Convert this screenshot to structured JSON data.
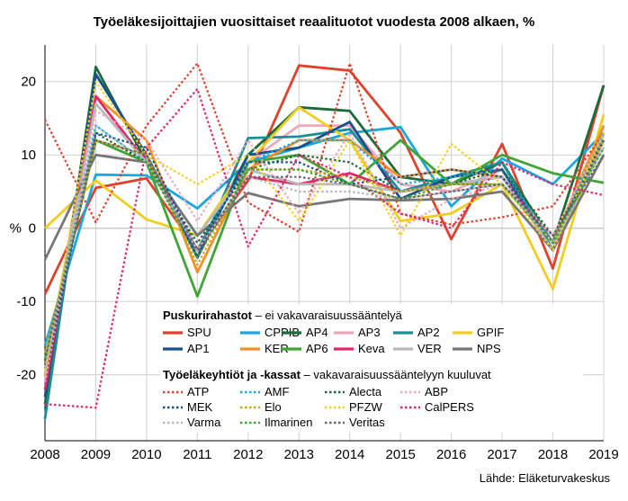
{
  "chart_data": {
    "type": "line",
    "title": "Työeläkesijoittajien vuosittaiset reaalituotot vuodesta 2008 alkaen, %",
    "xlabel": "",
    "ylabel": "%",
    "categories": [
      "2008",
      "2009",
      "2010",
      "2011",
      "2012",
      "2013",
      "2014",
      "2015",
      "2016",
      "2017",
      "2018",
      "2019"
    ],
    "yticks": [
      20,
      10,
      0,
      -10,
      -20
    ],
    "ylim": [
      -29,
      25
    ],
    "grid": true,
    "source": "Lähde: Eläketurvakeskus",
    "legend_groups": [
      {
        "bold": "Puskurirahastot",
        "rest": " – ei vakavaraisuussääntelyä"
      },
      {
        "bold": "Työeläkeyhtiöt ja -kassat",
        "rest": " – vakavaraisuussääntelyyn kuuluvat"
      }
    ],
    "series": [
      {
        "name": "SPU",
        "group": 0,
        "style": "solid",
        "color": "#e0412d",
        "values": [
          -9,
          5.5,
          6.8,
          -3,
          6.5,
          22.2,
          21.5,
          13,
          -1.5,
          11.5,
          -5.5,
          19.5
        ]
      },
      {
        "name": "CPPIB",
        "group": 0,
        "style": "solid",
        "color": "#1aa7e0",
        "values": [
          -16,
          7.3,
          7.2,
          2.7,
          9,
          11,
          13,
          13.8,
          3,
          9.5,
          6,
          13
        ]
      },
      {
        "name": "AP4",
        "group": 0,
        "style": "solid",
        "color": "#1b6b3a",
        "values": [
          -24,
          22,
          9,
          -3,
          10,
          16.5,
          16,
          7,
          6,
          9,
          -2,
          19.5
        ]
      },
      {
        "name": "AP3",
        "group": 0,
        "style": "solid",
        "color": "#f0a8b8",
        "values": [
          -21,
          18,
          9,
          -3,
          9,
          14,
          14,
          6,
          5,
          8,
          -2,
          14
        ]
      },
      {
        "name": "AP2",
        "group": 0,
        "style": "solid",
        "color": "#1a8e96",
        "values": [
          -26,
          21,
          10,
          -4,
          12.3,
          12.5,
          13.5,
          5,
          7,
          9,
          -3,
          13
        ]
      },
      {
        "name": "GPIF",
        "group": 0,
        "style": "solid",
        "color": "#f2cc1e",
        "values": [
          0,
          6.5,
          1.2,
          -1,
          9,
          16.5,
          12,
          1,
          2,
          6,
          -8.3,
          15.5
        ]
      },
      {
        "name": "AP1",
        "group": 0,
        "style": "solid",
        "color": "#1a4f8c",
        "values": [
          -23,
          21,
          10,
          -4,
          10,
          11,
          14.5,
          4,
          7,
          8,
          -3,
          12
        ]
      },
      {
        "name": "KER",
        "group": 0,
        "style": "solid",
        "color": "#f0922a",
        "values": [
          -20,
          18,
          12,
          -6,
          8,
          12,
          12,
          7,
          8,
          7,
          -2,
          14
        ]
      },
      {
        "name": "AP6",
        "group": 0,
        "style": "solid",
        "color": "#3fa535",
        "values": [
          -18,
          12,
          9,
          -9.3,
          9,
          10,
          6,
          12,
          6,
          10,
          7.5,
          6.2
        ]
      },
      {
        "name": "Keva",
        "group": 0,
        "style": "solid",
        "color": "#e0286e",
        "values": [
          -22,
          18,
          9,
          -3,
          7,
          6,
          7.5,
          5,
          6,
          7,
          -2,
          12
        ]
      },
      {
        "name": "VER",
        "group": 0,
        "style": "solid",
        "color": "#b9b9b9",
        "values": [
          -20,
          17,
          9,
          -1,
          8,
          6,
          6,
          5,
          6,
          7,
          -3,
          12
        ]
      },
      {
        "name": "NPS",
        "group": 0,
        "style": "solid",
        "color": "#777777",
        "values": [
          -4.3,
          10,
          9,
          -1,
          4.8,
          3,
          4,
          3.8,
          4,
          5,
          -3,
          10
        ]
      },
      {
        "name": "ATP",
        "group": 1,
        "style": "dotted",
        "color": "#e0412d",
        "values": [
          14.8,
          0.8,
          14,
          22.5,
          3.5,
          -0.5,
          22.5,
          2,
          0.5,
          1.5,
          3,
          13
        ]
      },
      {
        "name": "AMF",
        "group": 1,
        "style": "dotted",
        "color": "#1aa7e0",
        "values": [
          -18,
          14,
          9,
          -3,
          9,
          12,
          12,
          6,
          7,
          8,
          -2,
          13
        ]
      },
      {
        "name": "Alecta",
        "group": 1,
        "style": "dotted",
        "color": "#1b6b3a",
        "values": [
          -19,
          13,
          9,
          -2,
          8,
          10,
          9,
          5,
          6,
          8,
          -1,
          11
        ]
      },
      {
        "name": "ABP",
        "group": 1,
        "style": "dotted",
        "color": "#f0a8b8",
        "values": [
          -21,
          16,
          12,
          1,
          12,
          2,
          13,
          0,
          4,
          6,
          -1,
          13
        ]
      },
      {
        "name": "MEK",
        "group": 1,
        "style": "dotted",
        "color": "#1a4f8c",
        "values": [
          -20,
          13,
          11,
          -3,
          9,
          9,
          6,
          7,
          8,
          7,
          -2,
          12
        ]
      },
      {
        "name": "Elo",
        "group": 1,
        "style": "dotted",
        "color": "#d4a017",
        "values": [
          -17,
          12,
          10,
          -5,
          8,
          8,
          7,
          5,
          6,
          6,
          -2,
          12
        ]
      },
      {
        "name": "PFZW",
        "group": 1,
        "style": "dotted",
        "color": "#f2d21e",
        "values": [
          -20,
          20,
          10,
          6,
          10,
          1,
          12,
          -1,
          11.5,
          6,
          -3,
          13
        ]
      },
      {
        "name": "CalPERS",
        "group": 1,
        "style": "dotted",
        "color": "#e0286e",
        "values": [
          -24,
          -24.5,
          11,
          19,
          -2.5,
          10,
          7,
          2,
          0,
          9,
          6,
          4.5
        ]
      },
      {
        "name": "Varma",
        "group": 1,
        "style": "dotted",
        "color": "#b9b9b9",
        "values": [
          -19,
          14,
          9,
          -3,
          7,
          5,
          5,
          4,
          5,
          6,
          -2,
          11
        ]
      },
      {
        "name": "Ilmarinen",
        "group": 1,
        "style": "dotted",
        "color": "#3fa535",
        "values": [
          -18,
          12,
          9,
          -4,
          8,
          8,
          6,
          4,
          6,
          6,
          -2,
          11
        ]
      },
      {
        "name": "Veritas",
        "group": 1,
        "style": "dotted",
        "color": "#666666",
        "values": [
          -18,
          12,
          10,
          -3,
          7,
          7,
          6,
          4,
          5,
          6,
          -1,
          10
        ]
      }
    ]
  }
}
